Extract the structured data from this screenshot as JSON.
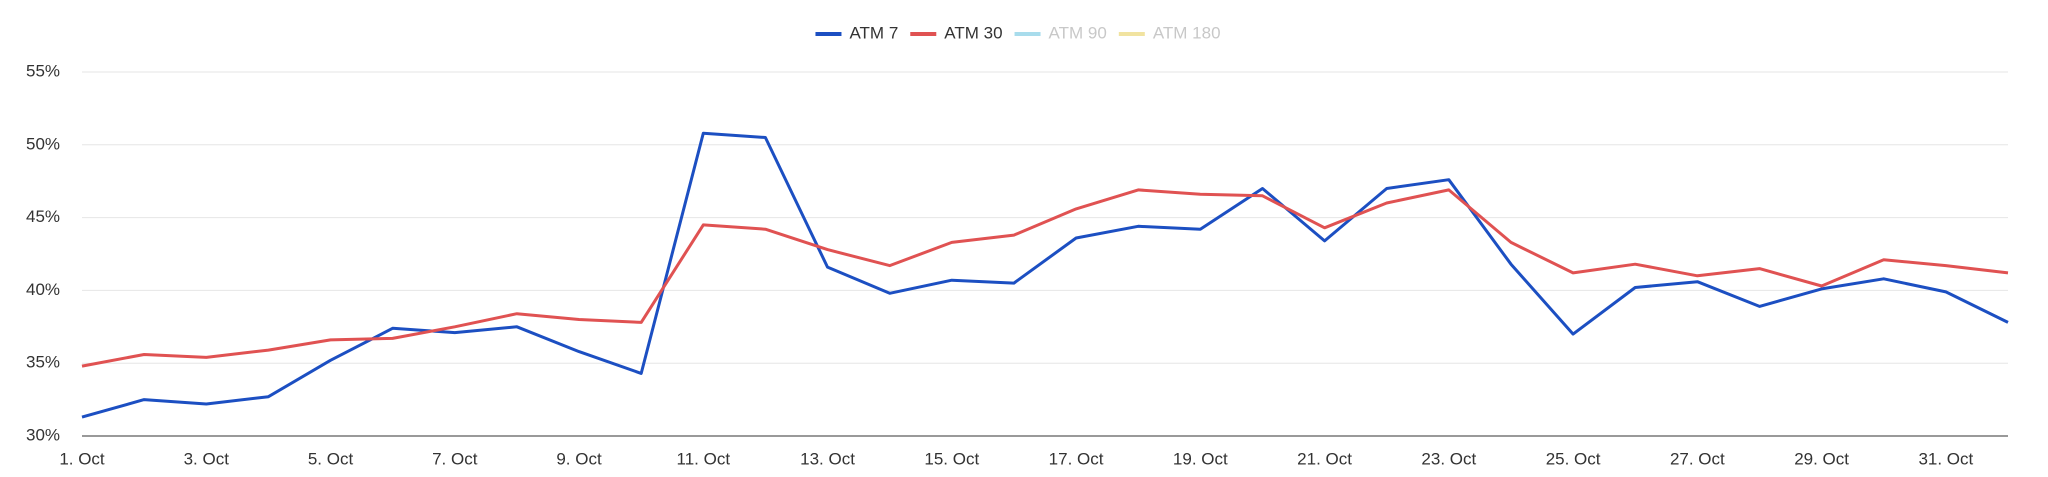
{
  "chart_data": {
    "type": "line",
    "categories": [
      "1. Oct",
      null,
      "3. Oct",
      null,
      "5. Oct",
      null,
      "7. Oct",
      null,
      "9. Oct",
      null,
      "11. Oct",
      null,
      "13. Oct",
      null,
      "15. Oct",
      null,
      "17. Oct",
      null,
      "19. Oct",
      null,
      "21. Oct",
      null,
      "23. Oct",
      null,
      "25. Oct",
      null,
      "27. Oct",
      null,
      "29. Oct",
      null,
      "31. Oct",
      null
    ],
    "series": [
      {
        "name": "ATM 7",
        "color": "#1c4fc2",
        "visible": true,
        "values": [
          31.3,
          32.5,
          32.2,
          32.7,
          35.2,
          37.4,
          37.1,
          37.5,
          35.8,
          34.3,
          50.8,
          50.5,
          41.6,
          39.8,
          40.7,
          40.5,
          43.6,
          44.4,
          44.2,
          47.0,
          43.4,
          47.0,
          47.6,
          41.8,
          37.0,
          40.2,
          40.6,
          38.9,
          40.1,
          40.8,
          39.9,
          37.8
        ]
      },
      {
        "name": "ATM 30",
        "color": "#e05252",
        "visible": true,
        "values": [
          34.8,
          35.6,
          35.4,
          35.9,
          36.6,
          36.7,
          37.5,
          38.4,
          38.0,
          37.8,
          44.5,
          44.2,
          42.8,
          41.7,
          43.3,
          43.8,
          45.6,
          46.9,
          46.6,
          46.5,
          44.3,
          46.0,
          46.9,
          43.3,
          41.2,
          41.8,
          41.0,
          41.5,
          40.3,
          42.1,
          41.7,
          41.2
        ]
      },
      {
        "name": "ATM 90",
        "color": "#a8dcec",
        "visible": false,
        "values": [
          null,
          null,
          null,
          null,
          null,
          null,
          null,
          null,
          null,
          null,
          null,
          null,
          null,
          null,
          null,
          null,
          null,
          null,
          null,
          null,
          null,
          null,
          null,
          null,
          null,
          null,
          null,
          null,
          null,
          null,
          null,
          null
        ]
      },
      {
        "name": "ATM 180",
        "color": "#f1e3a0",
        "visible": false,
        "values": [
          null,
          null,
          null,
          null,
          null,
          null,
          null,
          null,
          null,
          null,
          null,
          null,
          null,
          null,
          null,
          null,
          null,
          null,
          null,
          null,
          null,
          null,
          null,
          null,
          null,
          null,
          null,
          null,
          null,
          null,
          null,
          null
        ]
      }
    ],
    "ylim": [
      30,
      55
    ],
    "yticks": [
      {
        "value": 30,
        "label": "30%"
      },
      {
        "value": 35,
        "label": "35%"
      },
      {
        "value": 40,
        "label": "40%"
      },
      {
        "value": 45,
        "label": "45%"
      },
      {
        "value": 50,
        "label": "50%"
      },
      {
        "value": 55,
        "label": "55%"
      }
    ],
    "grid": true,
    "legend": "top"
  }
}
